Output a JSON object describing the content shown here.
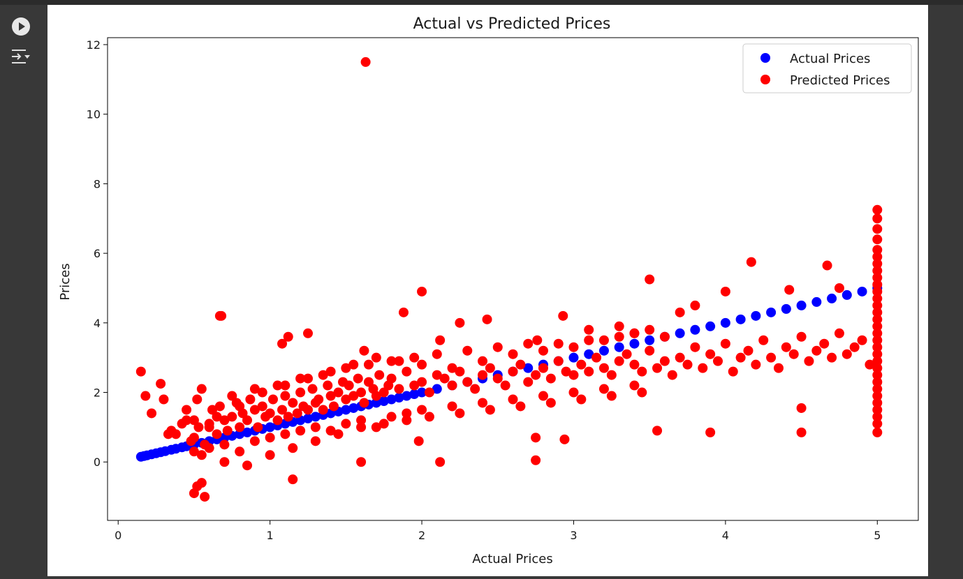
{
  "cell_controls": {
    "run_icon": "play-circle-icon",
    "output_toggle_icon": "output-collapse-icon"
  },
  "chart_data": {
    "type": "scatter",
    "title": "Actual vs Predicted Prices",
    "xlabel": "Actual Prices",
    "ylabel": "Prices",
    "xlim": [
      -0.07,
      5.27
    ],
    "ylim": [
      -1.68,
      12.2
    ],
    "xticks": [
      "0",
      "1",
      "2",
      "3",
      "4",
      "5"
    ],
    "yticks": [
      "0",
      "2",
      "4",
      "6",
      "8",
      "10",
      "12"
    ],
    "grid": false,
    "legend_position": "top-right",
    "series": [
      {
        "name": "Actual Prices",
        "color": "#0000ff",
        "description": "y equals x for each test sample",
        "x": [
          0.15,
          0.17,
          0.19,
          0.22,
          0.25,
          0.28,
          0.31,
          0.35,
          0.38,
          0.42,
          0.45,
          0.5,
          0.55,
          0.6,
          0.65,
          0.7,
          0.75,
          0.8,
          0.85,
          0.9,
          0.95,
          1.0,
          1.05,
          1.1,
          1.15,
          1.2,
          1.25,
          1.3,
          1.35,
          1.4,
          1.45,
          1.5,
          1.55,
          1.6,
          1.65,
          1.7,
          1.75,
          1.8,
          1.85,
          1.9,
          1.95,
          2.0,
          2.1,
          2.2,
          2.3,
          2.4,
          2.5,
          2.6,
          2.7,
          2.8,
          2.9,
          3.0,
          3.1,
          3.2,
          3.3,
          3.4,
          3.5,
          3.6,
          3.7,
          3.8,
          3.9,
          4.0,
          4.1,
          4.2,
          4.3,
          4.4,
          4.5,
          4.6,
          4.7,
          4.8,
          4.9,
          5.0
        ],
        "y": [
          0.15,
          0.17,
          0.19,
          0.22,
          0.25,
          0.28,
          0.31,
          0.35,
          0.38,
          0.42,
          0.45,
          0.5,
          0.55,
          0.6,
          0.65,
          0.7,
          0.75,
          0.8,
          0.85,
          0.9,
          0.95,
          1.0,
          1.05,
          1.1,
          1.15,
          1.2,
          1.25,
          1.3,
          1.35,
          1.4,
          1.45,
          1.5,
          1.55,
          1.6,
          1.65,
          1.7,
          1.75,
          1.8,
          1.85,
          1.9,
          1.95,
          2.0,
          2.1,
          2.2,
          2.3,
          2.4,
          2.5,
          2.6,
          2.7,
          2.8,
          2.9,
          3.0,
          3.1,
          3.2,
          3.3,
          3.4,
          3.5,
          3.6,
          3.7,
          3.8,
          3.9,
          4.0,
          4.1,
          4.2,
          4.3,
          4.4,
          4.5,
          4.6,
          4.7,
          4.8,
          4.9,
          5.0
        ]
      },
      {
        "name": "Predicted Prices",
        "color": "#ff0000",
        "x": [
          0.15,
          0.18,
          0.22,
          0.28,
          0.3,
          0.33,
          0.38,
          0.42,
          0.45,
          0.48,
          0.5,
          0.52,
          0.53,
          0.55,
          0.57,
          0.6,
          0.62,
          0.65,
          0.67,
          0.7,
          0.72,
          0.75,
          0.78,
          0.8,
          0.82,
          0.85,
          0.87,
          0.9,
          0.92,
          0.95,
          0.97,
          1.0,
          1.02,
          1.05,
          1.08,
          1.1,
          1.12,
          1.15,
          1.18,
          1.2,
          1.22,
          1.25,
          1.28,
          1.3,
          1.32,
          1.35,
          1.38,
          1.4,
          1.42,
          1.45,
          1.48,
          1.5,
          1.52,
          1.55,
          1.58,
          1.6,
          1.62,
          1.65,
          1.68,
          1.7,
          1.72,
          1.75,
          1.78,
          1.8,
          1.85,
          1.9,
          1.95,
          2.0,
          2.05,
          2.1,
          2.15,
          2.2,
          2.25,
          2.3,
          2.35,
          2.4,
          2.45,
          2.5,
          2.55,
          2.6,
          2.65,
          2.7,
          2.75,
          2.8,
          2.85,
          2.9,
          2.95,
          3.0,
          3.05,
          3.1,
          3.15,
          3.2,
          3.25,
          3.3,
          3.35,
          3.4,
          3.45,
          3.5,
          3.55,
          3.6,
          3.65,
          3.7,
          3.75,
          3.8,
          3.85,
          3.9,
          3.95,
          4.0,
          4.05,
          4.1,
          4.15,
          4.2,
          4.25,
          4.3,
          4.35,
          4.4,
          4.45,
          4.5,
          4.55,
          4.6,
          4.65,
          4.7,
          4.75,
          4.8,
          4.85,
          4.9,
          4.95,
          0.5,
          0.55,
          0.6,
          0.7,
          0.8,
          0.9,
          1.0,
          1.1,
          1.2,
          1.3,
          1.4,
          1.5,
          1.6,
          1.7,
          1.8,
          1.9,
          2.0,
          2.2,
          2.4,
          2.6,
          2.8,
          3.0,
          3.2,
          3.4,
          0.45,
          0.6,
          0.75,
          0.9,
          1.05,
          1.2,
          1.35,
          1.5,
          1.65,
          1.8,
          1.95,
          2.1,
          2.3,
          2.5,
          2.7,
          2.9,
          3.1,
          3.3,
          3.5,
          0.35,
          0.5,
          0.65,
          0.8,
          0.95,
          1.1,
          1.25,
          1.4,
          1.55,
          1.7,
          1.85,
          2.0,
          2.2,
          2.4,
          2.6,
          2.8,
          3.0,
          3.2,
          3.4,
          3.6,
          0.7,
          0.85,
          1.0,
          1.15,
          1.3,
          1.45,
          1.6,
          1.75,
          1.9,
          2.05,
          2.25,
          2.45,
          2.65,
          2.85,
          3.05,
          3.25,
          3.45,
          0.55,
          0.52,
          0.5,
          0.57,
          0.68,
          1.15,
          1.08,
          1.12,
          1.25,
          1.62,
          1.88,
          2.0,
          2.12,
          2.25,
          2.43,
          2.76,
          2.93,
          3.1,
          3.5,
          4.17,
          4.67,
          4.75,
          3.9,
          4.5,
          2.12,
          1.98,
          3.55,
          2.94,
          2.75,
          2.75,
          1.6,
          4.5,
          4.42,
          4.0,
          3.8,
          3.7,
          3.3,
          3.4,
          1.63,
          0.67
        ],
        "y": [
          2.6,
          1.9,
          1.4,
          2.25,
          1.8,
          0.8,
          0.8,
          1.1,
          1.5,
          0.6,
          0.7,
          1.8,
          1.0,
          2.1,
          0.5,
          1.0,
          1.5,
          0.8,
          1.6,
          1.2,
          0.9,
          1.3,
          1.7,
          1.0,
          1.4,
          1.2,
          1.8,
          1.5,
          1.0,
          1.6,
          1.3,
          1.4,
          1.8,
          1.2,
          1.5,
          1.9,
          1.3,
          1.7,
          1.4,
          2.0,
          1.6,
          1.5,
          2.1,
          1.7,
          1.8,
          1.5,
          2.2,
          1.9,
          1.6,
          2.0,
          2.3,
          1.8,
          2.2,
          1.9,
          2.4,
          2.0,
          1.7,
          2.3,
          2.1,
          1.9,
          2.5,
          2.0,
          2.2,
          2.4,
          2.1,
          2.6,
          2.2,
          2.3,
          2.0,
          2.5,
          2.4,
          2.2,
          2.6,
          2.3,
          2.1,
          2.5,
          2.7,
          2.4,
          2.2,
          2.6,
          2.8,
          2.3,
          2.5,
          2.7,
          2.4,
          2.9,
          2.6,
          2.5,
          2.8,
          2.6,
          3.0,
          2.7,
          2.5,
          2.9,
          3.1,
          2.8,
          2.6,
          3.2,
          2.7,
          2.9,
          2.5,
          3.0,
          2.8,
          3.3,
          2.7,
          3.1,
          2.9,
          3.4,
          2.6,
          3.0,
          3.2,
          2.8,
          3.5,
          3.0,
          2.7,
          3.3,
          3.1,
          3.6,
          2.9,
          3.2,
          3.4,
          3.0,
          3.7,
          3.1,
          3.3,
          3.5,
          2.8,
          0.3,
          0.2,
          0.4,
          0.5,
          0.3,
          0.6,
          0.7,
          0.8,
          0.9,
          1.0,
          0.9,
          1.1,
          1.2,
          1.0,
          1.3,
          1.4,
          1.5,
          1.6,
          1.7,
          1.8,
          1.9,
          2.0,
          2.1,
          2.2,
          1.2,
          1.1,
          1.9,
          2.1,
          2.2,
          2.4,
          2.5,
          2.7,
          2.8,
          2.9,
          3.0,
          3.1,
          3.2,
          3.3,
          3.4,
          3.4,
          3.5,
          3.6,
          3.8,
          0.9,
          1.2,
          1.3,
          1.6,
          2.0,
          2.2,
          2.4,
          2.6,
          2.8,
          3.0,
          2.9,
          2.8,
          2.7,
          2.9,
          3.1,
          3.2,
          3.3,
          3.5,
          3.7,
          3.6,
          0.0,
          -0.1,
          0.2,
          0.4,
          0.6,
          0.8,
          1.0,
          1.1,
          1.2,
          1.3,
          1.4,
          1.5,
          1.6,
          1.7,
          1.8,
          1.9,
          2.0,
          -0.6,
          -0.7,
          -0.9,
          -1.0,
          4.2,
          -0.5,
          3.4,
          3.6,
          3.7,
          3.2,
          4.3,
          4.9,
          3.5,
          4.0,
          4.1,
          3.5,
          4.2,
          3.8,
          5.25,
          5.75,
          5.65,
          5.0,
          0.85,
          0.85,
          0.0,
          0.6,
          0.9,
          0.65,
          0.7,
          0.05,
          0.0,
          1.55,
          4.95,
          4.9,
          4.5,
          4.3,
          3.9,
          3.7,
          11.5,
          4.2
        ]
      },
      {
        "name": "Predicted Prices",
        "color": "#ff0000",
        "description": "predictions for samples with actual price 5.0",
        "x": [
          5.0,
          5.0,
          5.0,
          5.0,
          5.0,
          5.0,
          5.0,
          5.0,
          5.0,
          5.0,
          5.0,
          5.0,
          5.0,
          5.0,
          5.0,
          5.0,
          5.0,
          5.0,
          5.0,
          5.0,
          5.0,
          5.0,
          5.0,
          5.0,
          5.0,
          5.0,
          5.0,
          5.0,
          5.0,
          5.0,
          5.0
        ],
        "y": [
          0.85,
          1.1,
          1.3,
          1.5,
          1.7,
          1.9,
          2.1,
          2.3,
          2.5,
          2.7,
          2.9,
          3.1,
          3.3,
          3.5,
          3.7,
          3.9,
          4.1,
          4.3,
          4.5,
          4.7,
          4.9,
          5.1,
          5.3,
          5.5,
          5.7,
          5.9,
          6.1,
          6.4,
          6.7,
          7.0,
          7.25
        ]
      }
    ]
  }
}
